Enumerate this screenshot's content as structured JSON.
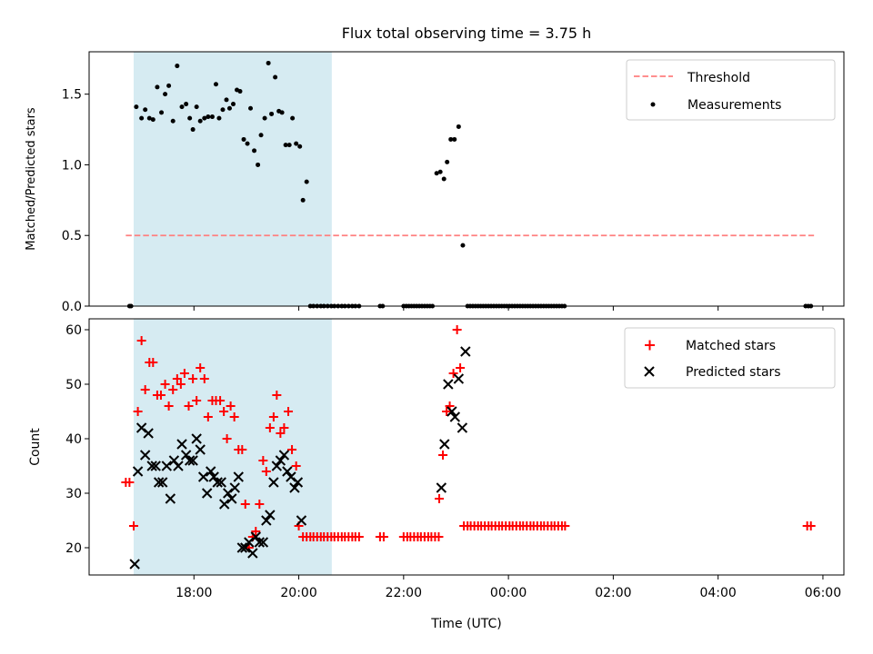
{
  "chart_data": [
    {
      "type": "scatter",
      "title": "Flux total observing time = 3.75 h",
      "xlabel": "",
      "ylabel": "Matched/Predicted stars",
      "ylim": [
        0,
        1.8
      ],
      "yticks": [
        0.0,
        0.5,
        1.0,
        1.5
      ],
      "ytick_labels": [
        "0.0",
        "0.5",
        "1.0",
        "1.5"
      ],
      "shaded_span_hours": [
        16.85,
        20.63
      ],
      "threshold": {
        "label": "Threshold",
        "value": 0.5,
        "x_range": [
          16.7,
          29.83
        ],
        "color": "#ff7f7f"
      },
      "measurements": {
        "label": "Measurements",
        "color": "#000000",
        "points": [
          [
            16.77,
            0
          ],
          [
            16.8,
            0
          ],
          [
            16.9,
            1.41
          ],
          [
            17.0,
            1.33
          ],
          [
            17.07,
            1.39
          ],
          [
            17.15,
            1.33
          ],
          [
            17.22,
            1.32
          ],
          [
            17.3,
            1.55
          ],
          [
            17.38,
            1.37
          ],
          [
            17.45,
            1.5
          ],
          [
            17.52,
            1.56
          ],
          [
            17.6,
            1.31
          ],
          [
            17.68,
            1.7
          ],
          [
            17.77,
            1.41
          ],
          [
            17.85,
            1.43
          ],
          [
            17.92,
            1.33
          ],
          [
            17.98,
            1.25
          ],
          [
            18.05,
            1.41
          ],
          [
            18.12,
            1.31
          ],
          [
            18.2,
            1.33
          ],
          [
            18.27,
            1.34
          ],
          [
            18.35,
            1.34
          ],
          [
            18.42,
            1.57
          ],
          [
            18.48,
            1.33
          ],
          [
            18.55,
            1.39
          ],
          [
            18.62,
            1.46
          ],
          [
            18.68,
            1.4
          ],
          [
            18.75,
            1.43
          ],
          [
            18.82,
            1.53
          ],
          [
            18.88,
            1.52
          ],
          [
            18.95,
            1.18
          ],
          [
            19.02,
            1.15
          ],
          [
            19.08,
            1.4
          ],
          [
            19.15,
            1.1
          ],
          [
            19.22,
            1.0
          ],
          [
            19.28,
            1.21
          ],
          [
            19.35,
            1.33
          ],
          [
            19.42,
            1.72
          ],
          [
            19.48,
            1.36
          ],
          [
            19.55,
            1.62
          ],
          [
            19.62,
            1.38
          ],
          [
            19.68,
            1.37
          ],
          [
            19.75,
            1.14
          ],
          [
            19.82,
            1.14
          ],
          [
            19.88,
            1.33
          ],
          [
            19.95,
            1.15
          ],
          [
            20.02,
            1.13
          ],
          [
            20.08,
            0.75
          ],
          [
            20.15,
            0.88
          ],
          [
            20.22,
            0
          ],
          [
            20.28,
            0
          ],
          [
            20.35,
            0
          ],
          [
            20.42,
            0
          ],
          [
            20.48,
            0
          ],
          [
            20.55,
            0
          ],
          [
            20.62,
            0
          ],
          [
            20.68,
            0
          ],
          [
            20.75,
            0
          ],
          [
            20.82,
            0
          ],
          [
            20.88,
            0
          ],
          [
            20.95,
            0
          ],
          [
            21.02,
            0
          ],
          [
            21.08,
            0
          ],
          [
            21.15,
            0
          ],
          [
            21.55,
            0
          ],
          [
            21.6,
            0
          ],
          [
            22.0,
            0
          ],
          [
            22.05,
            0
          ],
          [
            22.1,
            0
          ],
          [
            22.15,
            0
          ],
          [
            22.2,
            0
          ],
          [
            22.25,
            0
          ],
          [
            22.3,
            0
          ],
          [
            22.35,
            0
          ],
          [
            22.4,
            0
          ],
          [
            22.45,
            0
          ],
          [
            22.5,
            0
          ],
          [
            22.55,
            0
          ],
          [
            22.63,
            0.94
          ],
          [
            22.7,
            0.95
          ],
          [
            22.77,
            0.9
          ],
          [
            22.83,
            1.02
          ],
          [
            22.9,
            1.18
          ],
          [
            22.97,
            1.18
          ],
          [
            23.05,
            1.27
          ],
          [
            23.13,
            0.43
          ],
          [
            23.22,
            0
          ],
          [
            23.27,
            0
          ],
          [
            23.32,
            0
          ],
          [
            23.37,
            0
          ],
          [
            23.42,
            0
          ],
          [
            23.47,
            0
          ],
          [
            23.52,
            0
          ],
          [
            23.57,
            0
          ],
          [
            23.62,
            0
          ],
          [
            23.67,
            0
          ],
          [
            23.72,
            0
          ],
          [
            23.77,
            0
          ],
          [
            23.82,
            0
          ],
          [
            23.87,
            0
          ],
          [
            23.92,
            0
          ],
          [
            23.97,
            0
          ],
          [
            24.02,
            0
          ],
          [
            24.07,
            0
          ],
          [
            24.12,
            0
          ],
          [
            24.17,
            0
          ],
          [
            24.22,
            0
          ],
          [
            24.27,
            0
          ],
          [
            24.32,
            0
          ],
          [
            24.37,
            0
          ],
          [
            24.42,
            0
          ],
          [
            24.47,
            0
          ],
          [
            24.52,
            0
          ],
          [
            24.57,
            0
          ],
          [
            24.62,
            0
          ],
          [
            24.67,
            0
          ],
          [
            24.72,
            0
          ],
          [
            24.77,
            0
          ],
          [
            24.82,
            0
          ],
          [
            24.87,
            0
          ],
          [
            24.92,
            0
          ],
          [
            24.97,
            0
          ],
          [
            25.02,
            0
          ],
          [
            25.07,
            0
          ],
          [
            29.67,
            0
          ],
          [
            29.72,
            0
          ],
          [
            29.77,
            0
          ]
        ]
      },
      "legend": {
        "position": "top-right",
        "entries": [
          "Threshold",
          "Measurements"
        ]
      }
    },
    {
      "type": "scatter",
      "xlabel": "Time (UTC)",
      "ylabel": "Count",
      "ylim": [
        15,
        62
      ],
      "yticks": [
        20,
        30,
        40,
        50,
        60
      ],
      "ytick_labels": [
        "20",
        "30",
        "40",
        "50",
        "60"
      ],
      "xlim_hours": [
        16.0,
        30.4
      ],
      "xticks_hours": [
        18,
        20,
        22,
        24,
        26,
        28,
        30
      ],
      "xtick_labels": [
        "18:00",
        "20:00",
        "22:00",
        "00:00",
        "02:00",
        "04:00",
        "06:00"
      ],
      "shaded_span_hours": [
        16.85,
        20.63
      ],
      "matched": {
        "label": "Matched stars",
        "color": "#ff0000",
        "points": [
          [
            16.7,
            32
          ],
          [
            16.77,
            32
          ],
          [
            16.85,
            24
          ],
          [
            16.93,
            45
          ],
          [
            17.0,
            58
          ],
          [
            17.07,
            49
          ],
          [
            17.15,
            54
          ],
          [
            17.22,
            54
          ],
          [
            17.3,
            48
          ],
          [
            17.37,
            48
          ],
          [
            17.45,
            50
          ],
          [
            17.52,
            46
          ],
          [
            17.6,
            49
          ],
          [
            17.68,
            51
          ],
          [
            17.75,
            50
          ],
          [
            17.82,
            52
          ],
          [
            17.9,
            46
          ],
          [
            17.98,
            51
          ],
          [
            18.05,
            47
          ],
          [
            18.12,
            53
          ],
          [
            18.2,
            51
          ],
          [
            18.27,
            44
          ],
          [
            18.35,
            47
          ],
          [
            18.42,
            47
          ],
          [
            18.5,
            47
          ],
          [
            18.57,
            45
          ],
          [
            18.63,
            40
          ],
          [
            18.7,
            46
          ],
          [
            18.77,
            44
          ],
          [
            18.85,
            38
          ],
          [
            18.92,
            38
          ],
          [
            18.98,
            28
          ],
          [
            19.05,
            20
          ],
          [
            19.12,
            22
          ],
          [
            19.18,
            23
          ],
          [
            19.25,
            28
          ],
          [
            19.32,
            36
          ],
          [
            19.38,
            34
          ],
          [
            19.45,
            42
          ],
          [
            19.52,
            44
          ],
          [
            19.58,
            48
          ],
          [
            19.65,
            41
          ],
          [
            19.72,
            42
          ],
          [
            19.8,
            45
          ],
          [
            19.87,
            38
          ],
          [
            19.95,
            35
          ],
          [
            20.0,
            24
          ],
          [
            20.08,
            22
          ],
          [
            20.15,
            22
          ],
          [
            20.22,
            22
          ],
          [
            20.28,
            22
          ],
          [
            20.35,
            22
          ],
          [
            20.42,
            22
          ],
          [
            20.48,
            22
          ],
          [
            20.55,
            22
          ],
          [
            20.62,
            22
          ],
          [
            20.68,
            22
          ],
          [
            20.75,
            22
          ],
          [
            20.82,
            22
          ],
          [
            20.88,
            22
          ],
          [
            20.95,
            22
          ],
          [
            21.02,
            22
          ],
          [
            21.08,
            22
          ],
          [
            21.15,
            22
          ],
          [
            21.55,
            22
          ],
          [
            21.62,
            22
          ],
          [
            22.0,
            22
          ],
          [
            22.07,
            22
          ],
          [
            22.13,
            22
          ],
          [
            22.2,
            22
          ],
          [
            22.27,
            22
          ],
          [
            22.33,
            22
          ],
          [
            22.4,
            22
          ],
          [
            22.47,
            22
          ],
          [
            22.53,
            22
          ],
          [
            22.6,
            22
          ],
          [
            22.67,
            22
          ],
          [
            22.68,
            29
          ],
          [
            22.75,
            37
          ],
          [
            22.82,
            45
          ],
          [
            22.88,
            46
          ],
          [
            22.95,
            52
          ],
          [
            23.02,
            60
          ],
          [
            23.08,
            53
          ],
          [
            23.15,
            24
          ],
          [
            23.22,
            24
          ],
          [
            23.28,
            24
          ],
          [
            23.35,
            24
          ],
          [
            23.42,
            24
          ],
          [
            23.48,
            24
          ],
          [
            23.55,
            24
          ],
          [
            23.62,
            24
          ],
          [
            23.68,
            24
          ],
          [
            23.75,
            24
          ],
          [
            23.82,
            24
          ],
          [
            23.88,
            24
          ],
          [
            23.95,
            24
          ],
          [
            24.02,
            24
          ],
          [
            24.08,
            24
          ],
          [
            24.15,
            24
          ],
          [
            24.22,
            24
          ],
          [
            24.28,
            24
          ],
          [
            24.35,
            24
          ],
          [
            24.42,
            24
          ],
          [
            24.48,
            24
          ],
          [
            24.55,
            24
          ],
          [
            24.62,
            24
          ],
          [
            24.68,
            24
          ],
          [
            24.75,
            24
          ],
          [
            24.82,
            24
          ],
          [
            24.88,
            24
          ],
          [
            24.95,
            24
          ],
          [
            25.02,
            24
          ],
          [
            25.08,
            24
          ],
          [
            29.7,
            24
          ],
          [
            29.77,
            24
          ]
        ]
      },
      "predicted": {
        "label": "Predicted stars",
        "color": "#000000",
        "points": [
          [
            16.87,
            17
          ],
          [
            16.93,
            34
          ],
          [
            17.0,
            42
          ],
          [
            17.07,
            37
          ],
          [
            17.13,
            41
          ],
          [
            17.2,
            35
          ],
          [
            17.27,
            35
          ],
          [
            17.33,
            32
          ],
          [
            17.4,
            32
          ],
          [
            17.48,
            35
          ],
          [
            17.55,
            29
          ],
          [
            17.62,
            36
          ],
          [
            17.7,
            35
          ],
          [
            17.77,
            39
          ],
          [
            17.85,
            37
          ],
          [
            17.92,
            36
          ],
          [
            17.98,
            36
          ],
          [
            18.05,
            40
          ],
          [
            18.12,
            38
          ],
          [
            18.18,
            33
          ],
          [
            18.25,
            30
          ],
          [
            18.32,
            34
          ],
          [
            18.38,
            33
          ],
          [
            18.45,
            32
          ],
          [
            18.52,
            32
          ],
          [
            18.58,
            28
          ],
          [
            18.65,
            30
          ],
          [
            18.72,
            29
          ],
          [
            18.78,
            31
          ],
          [
            18.85,
            33
          ],
          [
            18.92,
            20
          ],
          [
            18.98,
            20
          ],
          [
            19.05,
            21
          ],
          [
            19.12,
            19
          ],
          [
            19.18,
            22
          ],
          [
            19.25,
            21
          ],
          [
            19.32,
            21
          ],
          [
            19.38,
            25
          ],
          [
            19.45,
            26
          ],
          [
            19.52,
            32
          ],
          [
            19.58,
            35
          ],
          [
            19.65,
            36
          ],
          [
            19.72,
            37
          ],
          [
            19.78,
            34
          ],
          [
            19.85,
            33
          ],
          [
            19.92,
            31
          ],
          [
            19.98,
            32
          ],
          [
            20.05,
            25
          ],
          [
            22.72,
            31
          ],
          [
            22.78,
            39
          ],
          [
            22.85,
            50
          ],
          [
            22.92,
            45
          ],
          [
            22.98,
            44
          ],
          [
            23.05,
            51
          ],
          [
            23.12,
            42
          ],
          [
            23.18,
            56
          ]
        ]
      },
      "legend": {
        "position": "top-right",
        "entries": [
          "Matched stars",
          "Predicted stars"
        ]
      }
    }
  ]
}
